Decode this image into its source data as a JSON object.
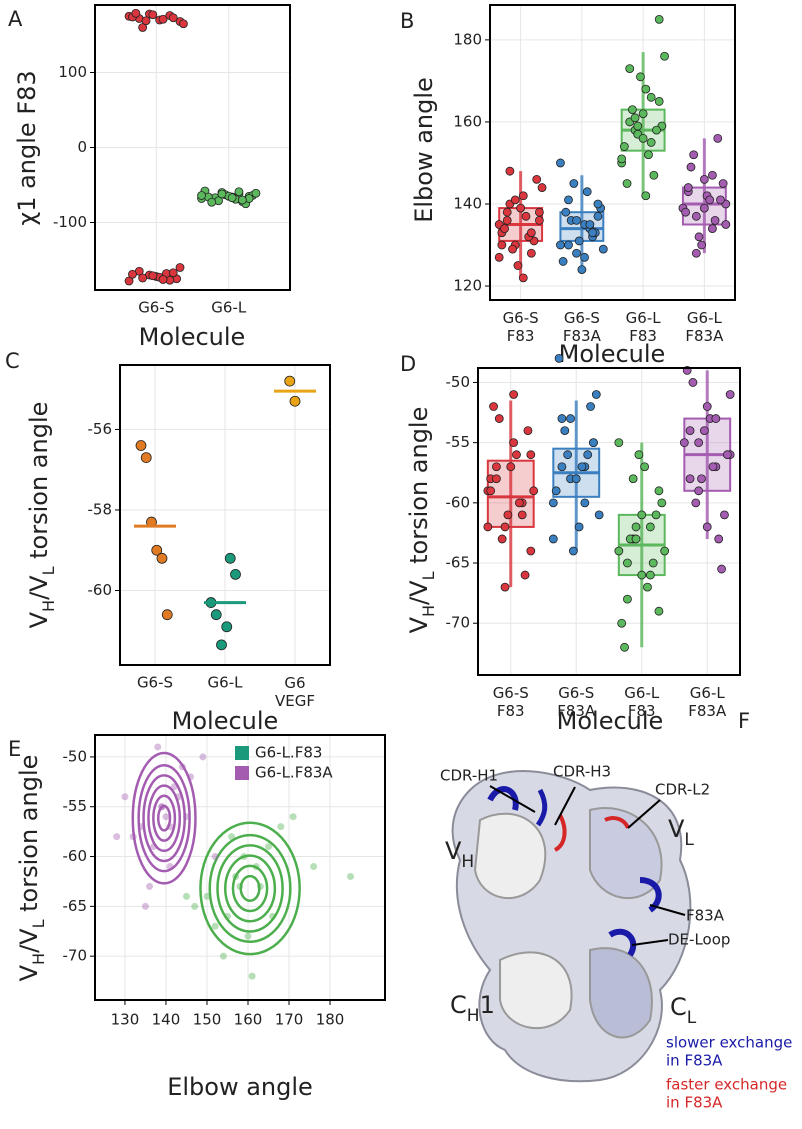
{
  "chart_data": [
    {
      "type": "strip",
      "panel_label": "A",
      "y_label": "χ1 angle F83",
      "x_label": "Molecule",
      "categories": [
        "G6-S",
        "G6-L"
      ],
      "ylim": [
        -190,
        190
      ],
      "yticks": [
        -100,
        0,
        100
      ],
      "grid": true,
      "series": [
        {
          "color": "#d9363e",
          "values": [
            175,
            172,
            178,
            170,
            176,
            168,
            174,
            160,
            177,
            171,
            173,
            165,
            179,
            169,
            -172,
            -168,
            -175,
            -178,
            -165,
            -170,
            -173,
            -177,
            -160,
            -169,
            -174,
            -171,
            -176,
            -167
          ]
        },
        {
          "color": "#5cb85c",
          "values": [
            -62,
            -65,
            -68,
            -70,
            -60,
            -66,
            -72,
            -64,
            -58,
            -67,
            -63,
            -69,
            -75,
            -61,
            -66,
            -71,
            -65,
            -59,
            -68,
            -64,
            -73,
            -62,
            -67,
            -70
          ]
        }
      ]
    },
    {
      "type": "strip",
      "panel_label": "B",
      "y_label": "Elbow angle",
      "x_label": "Molecule",
      "categories": [
        [
          "G6-S",
          "F83"
        ],
        [
          "G6-S",
          "F83A"
        ],
        [
          "G6-L",
          "F83"
        ],
        [
          "G6-L",
          "F83A"
        ]
      ],
      "ylim": [
        116.6,
        188.5
      ],
      "yticks": [
        120,
        140,
        160,
        180
      ],
      "grid": true,
      "series": [
        {
          "color": "#d9363e",
          "box": [
            122,
            131,
            135,
            139,
            148
          ],
          "values": [
            135,
            138,
            130,
            142,
            128,
            136,
            133,
            140,
            125,
            137,
            131,
            144,
            134,
            129,
            139,
            132,
            146,
            127,
            136,
            141,
            122,
            133,
            138,
            130,
            148
          ]
        },
        {
          "color": "#3a7fc0",
          "box": [
            124,
            131,
            134,
            138,
            147
          ],
          "values": [
            134,
            137,
            130,
            141,
            128,
            135,
            132,
            139,
            126,
            136,
            131,
            143,
            133,
            129,
            138,
            145,
            124,
            135,
            140,
            150,
            130,
            136,
            127,
            133
          ]
        },
        {
          "color": "#5cb85c",
          "box": [
            142,
            153,
            158,
            163,
            177
          ],
          "values": [
            158,
            162,
            155,
            165,
            150,
            160,
            157,
            168,
            147,
            159,
            154,
            163,
            171,
            152,
            158,
            176,
            145,
            161,
            156,
            166,
            185,
            151,
            173,
            159,
            142
          ]
        },
        {
          "color": "#a35cb0",
          "box": [
            128,
            135,
            140,
            144,
            156
          ],
          "values": [
            140,
            143,
            137,
            146,
            134,
            141,
            139,
            149,
            132,
            142,
            136,
            145,
            138,
            152,
            130,
            141,
            156,
            135,
            144,
            128,
            139,
            147
          ]
        }
      ]
    },
    {
      "type": "strip",
      "panel_label": "C",
      "y_label": [
        "V",
        "H",
        "/V",
        "L",
        " torsion angle"
      ],
      "x_label": "Molecule",
      "categories": [
        "G6-S",
        "G6-L",
        [
          "G6",
          "VEGF"
        ]
      ],
      "ylim": [
        -61.85,
        -54.4
      ],
      "yticks": [
        -60,
        -58,
        -56
      ],
      "grid": true,
      "series": [
        {
          "color": "#e07b24",
          "mean": -58.4,
          "values": [
            -56.4,
            -56.7,
            -58.3,
            -59.0,
            -59.2,
            -60.6
          ]
        },
        {
          "color": "#1a9a7a",
          "mean": -60.3,
          "values": [
            -59.2,
            -59.6,
            -60.3,
            -60.6,
            -61.35,
            -60.9
          ]
        },
        {
          "color": "#e8a317",
          "mean": -55.05,
          "values": [
            -54.8,
            -55.3
          ]
        }
      ]
    },
    {
      "type": "strip",
      "panel_label": "D",
      "y_label": [
        "V",
        "H",
        "/V",
        "L",
        " torsion angle"
      ],
      "x_label": "Molecule",
      "categories": [
        [
          "G6-S",
          "F83"
        ],
        [
          "G6-S",
          "F83A"
        ],
        [
          "G6-L",
          "F83"
        ],
        [
          "G6-L",
          "F83A"
        ]
      ],
      "ylim": [
        -74.3,
        -48.8
      ],
      "yticks": [
        -70,
        -65,
        -60,
        -55,
        -50
      ],
      "grid": true,
      "series": [
        {
          "color": "#d9363e",
          "box": [
            -67,
            -62,
            -59.5,
            -56.5,
            -51.5
          ],
          "values": [
            -59,
            -57,
            -62,
            -55,
            -60,
            -64,
            -58,
            -53,
            -61,
            -56,
            -66,
            -59,
            -52,
            -63,
            -57,
            -60,
            -54,
            -62,
            -58,
            -67,
            -51,
            -61,
            -56,
            -59
          ]
        },
        {
          "color": "#3a7fc0",
          "box": [
            -64,
            -59.5,
            -57.5,
            -55.5,
            -51.5
          ],
          "values": [
            -57,
            -55,
            -60,
            -53,
            -58,
            -62,
            -56,
            -51,
            -59,
            -54,
            -64,
            -57,
            -52,
            -61,
            -48,
            -56,
            -58,
            -60,
            -55,
            -63,
            -57,
            -53
          ]
        },
        {
          "color": "#5cb85c",
          "box": [
            -72,
            -66,
            -63.5,
            -61,
            -55
          ],
          "values": [
            -63,
            -61,
            -66,
            -59,
            -64,
            -68,
            -62,
            -57,
            -65,
            -60,
            -70,
            -63,
            -56,
            -67,
            -61,
            -64,
            -72,
            -58,
            -66,
            -62,
            -69,
            -55,
            -65,
            -63
          ]
        },
        {
          "color": "#a35cb0",
          "box": [
            -63,
            -59,
            -56,
            -53,
            -49
          ],
          "values": [
            -56,
            -54,
            -59,
            -52,
            -57,
            -61,
            -55,
            -50,
            -58,
            -53,
            -63,
            -56,
            -49,
            -60,
            -54,
            -57,
            -65.5,
            -51,
            -58,
            -55,
            -62,
            -53
          ]
        }
      ]
    },
    {
      "type": "scatter",
      "panel_label": "E",
      "y_label": [
        "V",
        "H",
        "/V",
        "L",
        " torsion angle"
      ],
      "x_label": "Elbow angle",
      "xlim": [
        122.7,
        193.4
      ],
      "ylim": [
        -74.4,
        -47.8
      ],
      "xticks": [
        130,
        140,
        150,
        160,
        170,
        180
      ],
      "yticks": [
        -70,
        -65,
        -60,
        -55,
        -50
      ],
      "grid": true,
      "legend": "top-right",
      "series": [
        {
          "name": "G6-L.F83",
          "color": "#4cae4c",
          "legend_color": "#1a9a7a",
          "x": [
            158,
            162,
            155,
            165,
            150,
            160,
            157,
            168,
            147,
            159,
            154,
            163,
            171,
            152,
            176,
            145,
            161,
            156,
            166,
            185
          ],
          "values": [
            -63,
            -61,
            -66,
            -59,
            -64,
            -68,
            -62,
            -57,
            -65,
            -60,
            -70,
            -63,
            -56,
            -67,
            -61,
            -64,
            -72,
            -58,
            -66,
            -62
          ]
        },
        {
          "name": "G6-L.F83A",
          "color": "#a35cb0",
          "legend_color": "#a35cb0",
          "x": [
            140,
            143,
            137,
            146,
            134,
            141,
            139,
            149,
            132,
            142,
            136,
            145,
            138,
            152,
            130,
            141,
            135,
            144,
            128,
            139
          ],
          "values": [
            -56,
            -54,
            -59,
            -52,
            -57,
            -61,
            -55,
            -50,
            -58,
            -53,
            -63,
            -56,
            -49,
            -60,
            -54,
            -57,
            -65,
            -51,
            -58,
            -55
          ]
        }
      ]
    }
  ],
  "structure": {
    "panel_label": "F",
    "cdr_h1": "CDR-H1",
    "cdr_h3": "CDR-H3",
    "cdr_l2": "CDR-L2",
    "vh": [
      "V",
      "H"
    ],
    "vl": [
      "V",
      "L"
    ],
    "f83a": "F83A",
    "de_loop": "DE-Loop",
    "ch1": [
      "C",
      "H",
      "1"
    ],
    "cl": [
      "C",
      "L"
    ],
    "slower": [
      "slower exchange",
      "in F83A"
    ],
    "faster": [
      "faster exchange",
      "in F83A"
    ]
  }
}
